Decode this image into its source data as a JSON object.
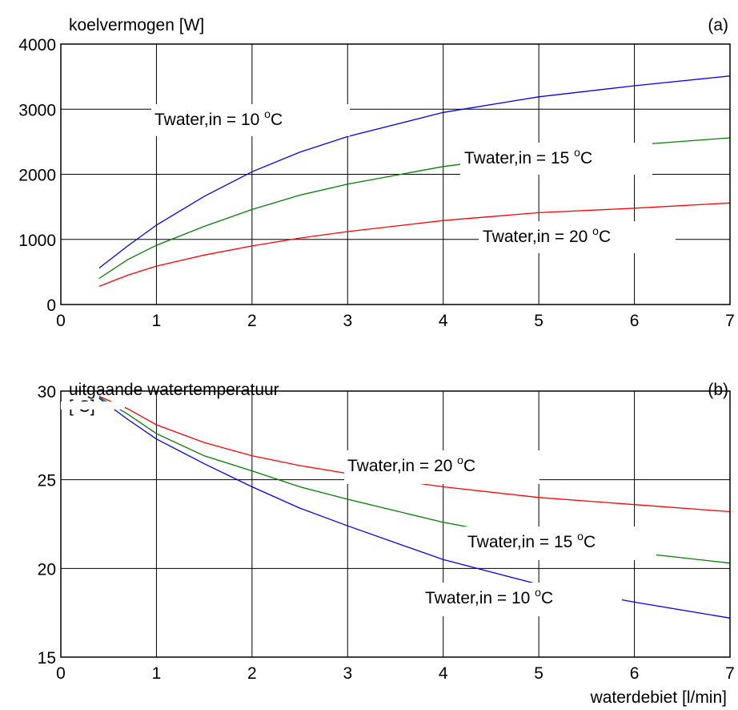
{
  "chart_data": [
    {
      "panel": "(a)",
      "type": "line",
      "ylabel": "koelvermogen [W]",
      "xlabel": "",
      "xlim": [
        0,
        7
      ],
      "ylim": [
        0,
        4000
      ],
      "xticks": [
        "0",
        "1",
        "2",
        "3",
        "4",
        "5",
        "6",
        "7"
      ],
      "yticks": [
        "0",
        "1000",
        "2000",
        "3000",
        "4000"
      ],
      "grid": true,
      "series": [
        {
          "label": "Twater,in = 10 °C",
          "color": "#0000ff",
          "x": [
            0.4,
            0.7,
            1,
            1.5,
            2,
            2.5,
            3,
            4,
            5,
            6,
            7
          ],
          "y": [
            560,
            900,
            1220,
            1660,
            2040,
            2340,
            2580,
            2950,
            3190,
            3360,
            3510
          ]
        },
        {
          "label": "Twater,in = 15 °C",
          "color": "#008000",
          "x": [
            0.4,
            0.7,
            1,
            1.5,
            2,
            2.5,
            3,
            4,
            5,
            6,
            7
          ],
          "y": [
            400,
            690,
            910,
            1200,
            1460,
            1680,
            1850,
            2120,
            2310,
            2450,
            2560
          ]
        },
        {
          "label": "Twater,in = 20 °C",
          "color": "#ff0000",
          "x": [
            0.4,
            0.7,
            1,
            1.5,
            2,
            2.5,
            3,
            4,
            5,
            6,
            7
          ],
          "y": [
            280,
            450,
            590,
            760,
            900,
            1020,
            1120,
            1290,
            1410,
            1480,
            1560
          ]
        }
      ],
      "annotations": [
        {
          "main": "Twater,in = 10 ",
          "sup": "o",
          "tail": "C",
          "series": "Twater,in = 10 °C"
        },
        {
          "main": "Twater,in = 15 ",
          "sup": "o",
          "tail": "C",
          "series": "Twater,in = 15 °C"
        },
        {
          "main": "Twater,in = 20 ",
          "sup": "o",
          "tail": "C",
          "series": "Twater,in = 20 °C"
        }
      ]
    },
    {
      "panel": "(b)",
      "type": "line",
      "ylabel": "uitgaande watertemperatuur",
      "ylabel_partial": "[ C]",
      "xlabel": "waterdebiet [l/min]",
      "xlim": [
        0,
        7
      ],
      "ylim": [
        15,
        30
      ],
      "xticks": [
        "0",
        "1",
        "2",
        "3",
        "4",
        "5",
        "6",
        "7"
      ],
      "yticks": [
        "15",
        "20",
        "25",
        "30"
      ],
      "grid": true,
      "series": [
        {
          "label": "Twater,in = 20 °C",
          "color": "#ff0000",
          "x": [
            0.4,
            0.7,
            1,
            1.5,
            2,
            2.5,
            3,
            4,
            5,
            6,
            7
          ],
          "y": [
            29.7,
            29.0,
            28.1,
            27.1,
            26.35,
            25.8,
            25.35,
            24.6,
            24.0,
            23.6,
            23.2
          ]
        },
        {
          "label": "Twater,in = 15 °C",
          "color": "#008000",
          "x": [
            0.4,
            0.7,
            1,
            1.5,
            2,
            2.5,
            3,
            4,
            5,
            6,
            7
          ],
          "y": [
            29.65,
            28.7,
            27.6,
            26.35,
            25.5,
            24.6,
            23.9,
            22.6,
            21.6,
            20.9,
            20.3
          ]
        },
        {
          "label": "Twater,in = 10 °C",
          "color": "#0000ff",
          "x": [
            0.4,
            0.7,
            1,
            1.5,
            2,
            2.5,
            3,
            4,
            5,
            6,
            7
          ],
          "y": [
            29.6,
            28.4,
            27.3,
            25.9,
            24.6,
            23.4,
            22.4,
            20.5,
            19.1,
            18.1,
            17.2
          ]
        }
      ],
      "annotations": [
        {
          "main": "Twater,in = 20 ",
          "sup": "o",
          "tail": "C",
          "series": "Twater,in = 20 °C"
        },
        {
          "main": "Twater,in = 15 ",
          "sup": "o",
          "tail": "C",
          "series": "Twater,in = 15 °C"
        },
        {
          "main": "Twater,in = 10 ",
          "sup": "o",
          "tail": "C",
          "series": "Twater,in = 10 °C"
        }
      ]
    }
  ]
}
